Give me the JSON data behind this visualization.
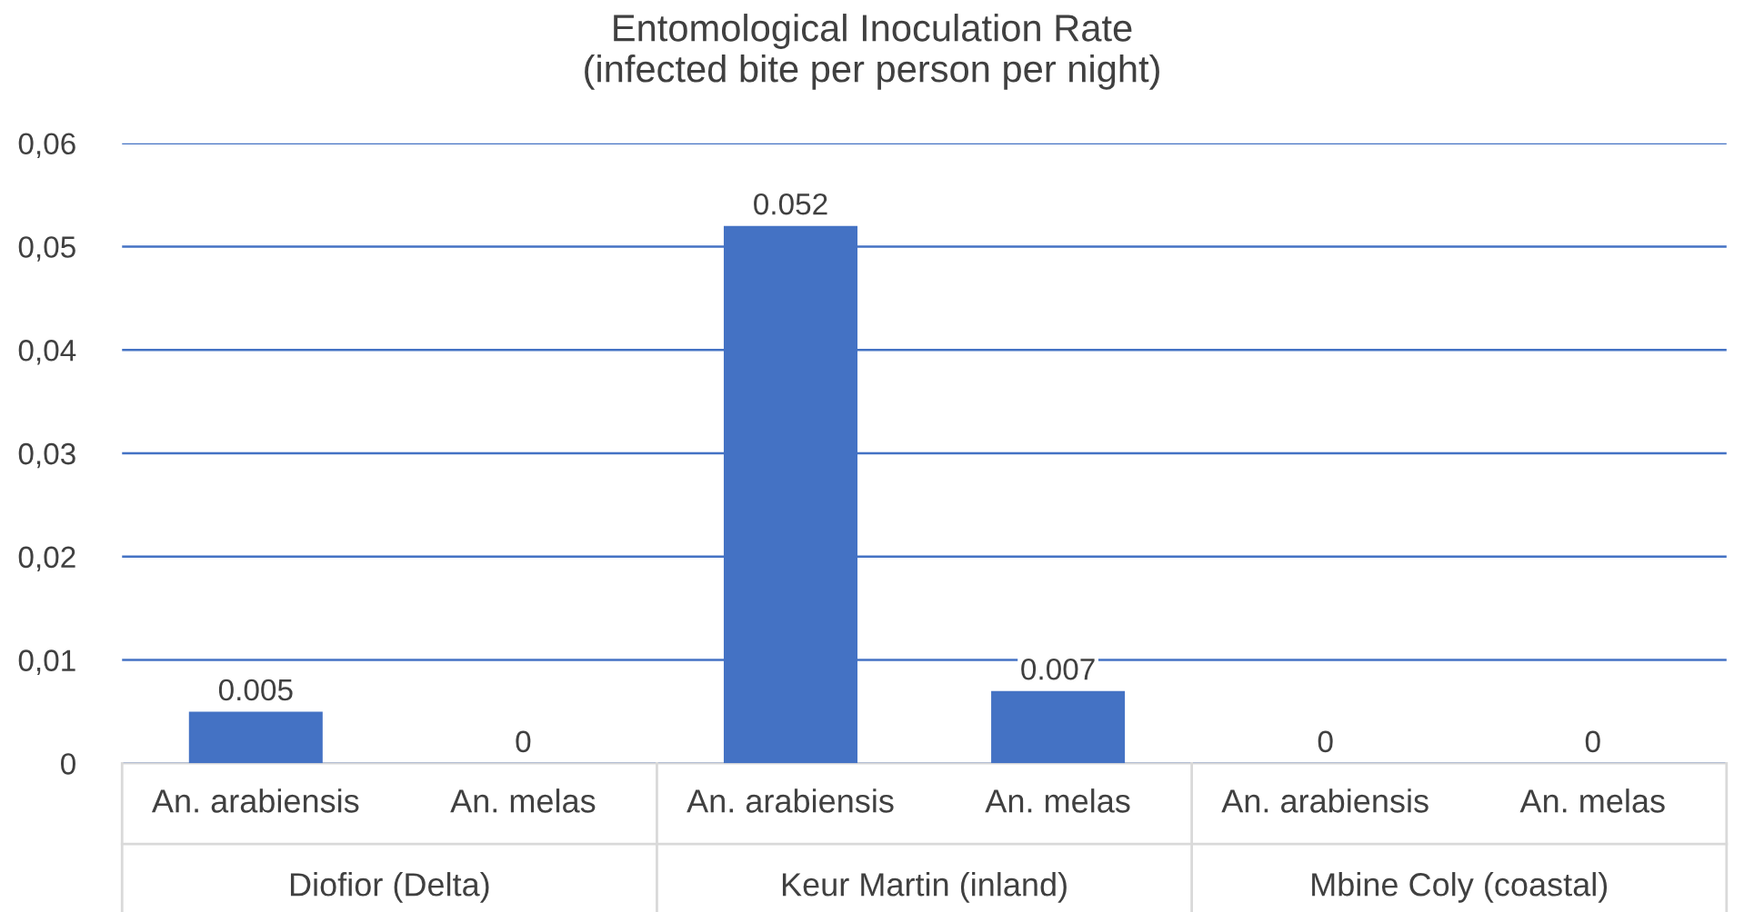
{
  "chart_data": {
    "type": "bar",
    "title": "Entomological Inoculation Rate\n(infected bite per person per night)",
    "categories": [
      "An. arabiensis",
      "An. melas",
      "An. arabiensis",
      "An. melas",
      "An. arabiensis",
      "An. melas"
    ],
    "values": [
      0.005,
      0,
      0.052,
      0.007,
      0,
      0
    ],
    "color": "#4472c4",
    "ylim": [
      0,
      0.06
    ],
    "yticks": [
      0,
      {
        "value": 0.01,
        "label": "0,01"
      },
      {
        "value": 0.02,
        "label": "0,02"
      },
      {
        "value": 0.03,
        "label": "0,03"
      },
      {
        "value": 0.04,
        "label": "0,04"
      },
      {
        "value": 0.05,
        "label": "0,05"
      },
      {
        "value": 0.06,
        "label": "0,06"
      }
    ],
    "grid": "y",
    "data_labels": true,
    "annotations": [
      "Diofior (Delta)",
      "Keur Martin (inland)",
      "Mbine Coly (coastal)"
    ]
  }
}
